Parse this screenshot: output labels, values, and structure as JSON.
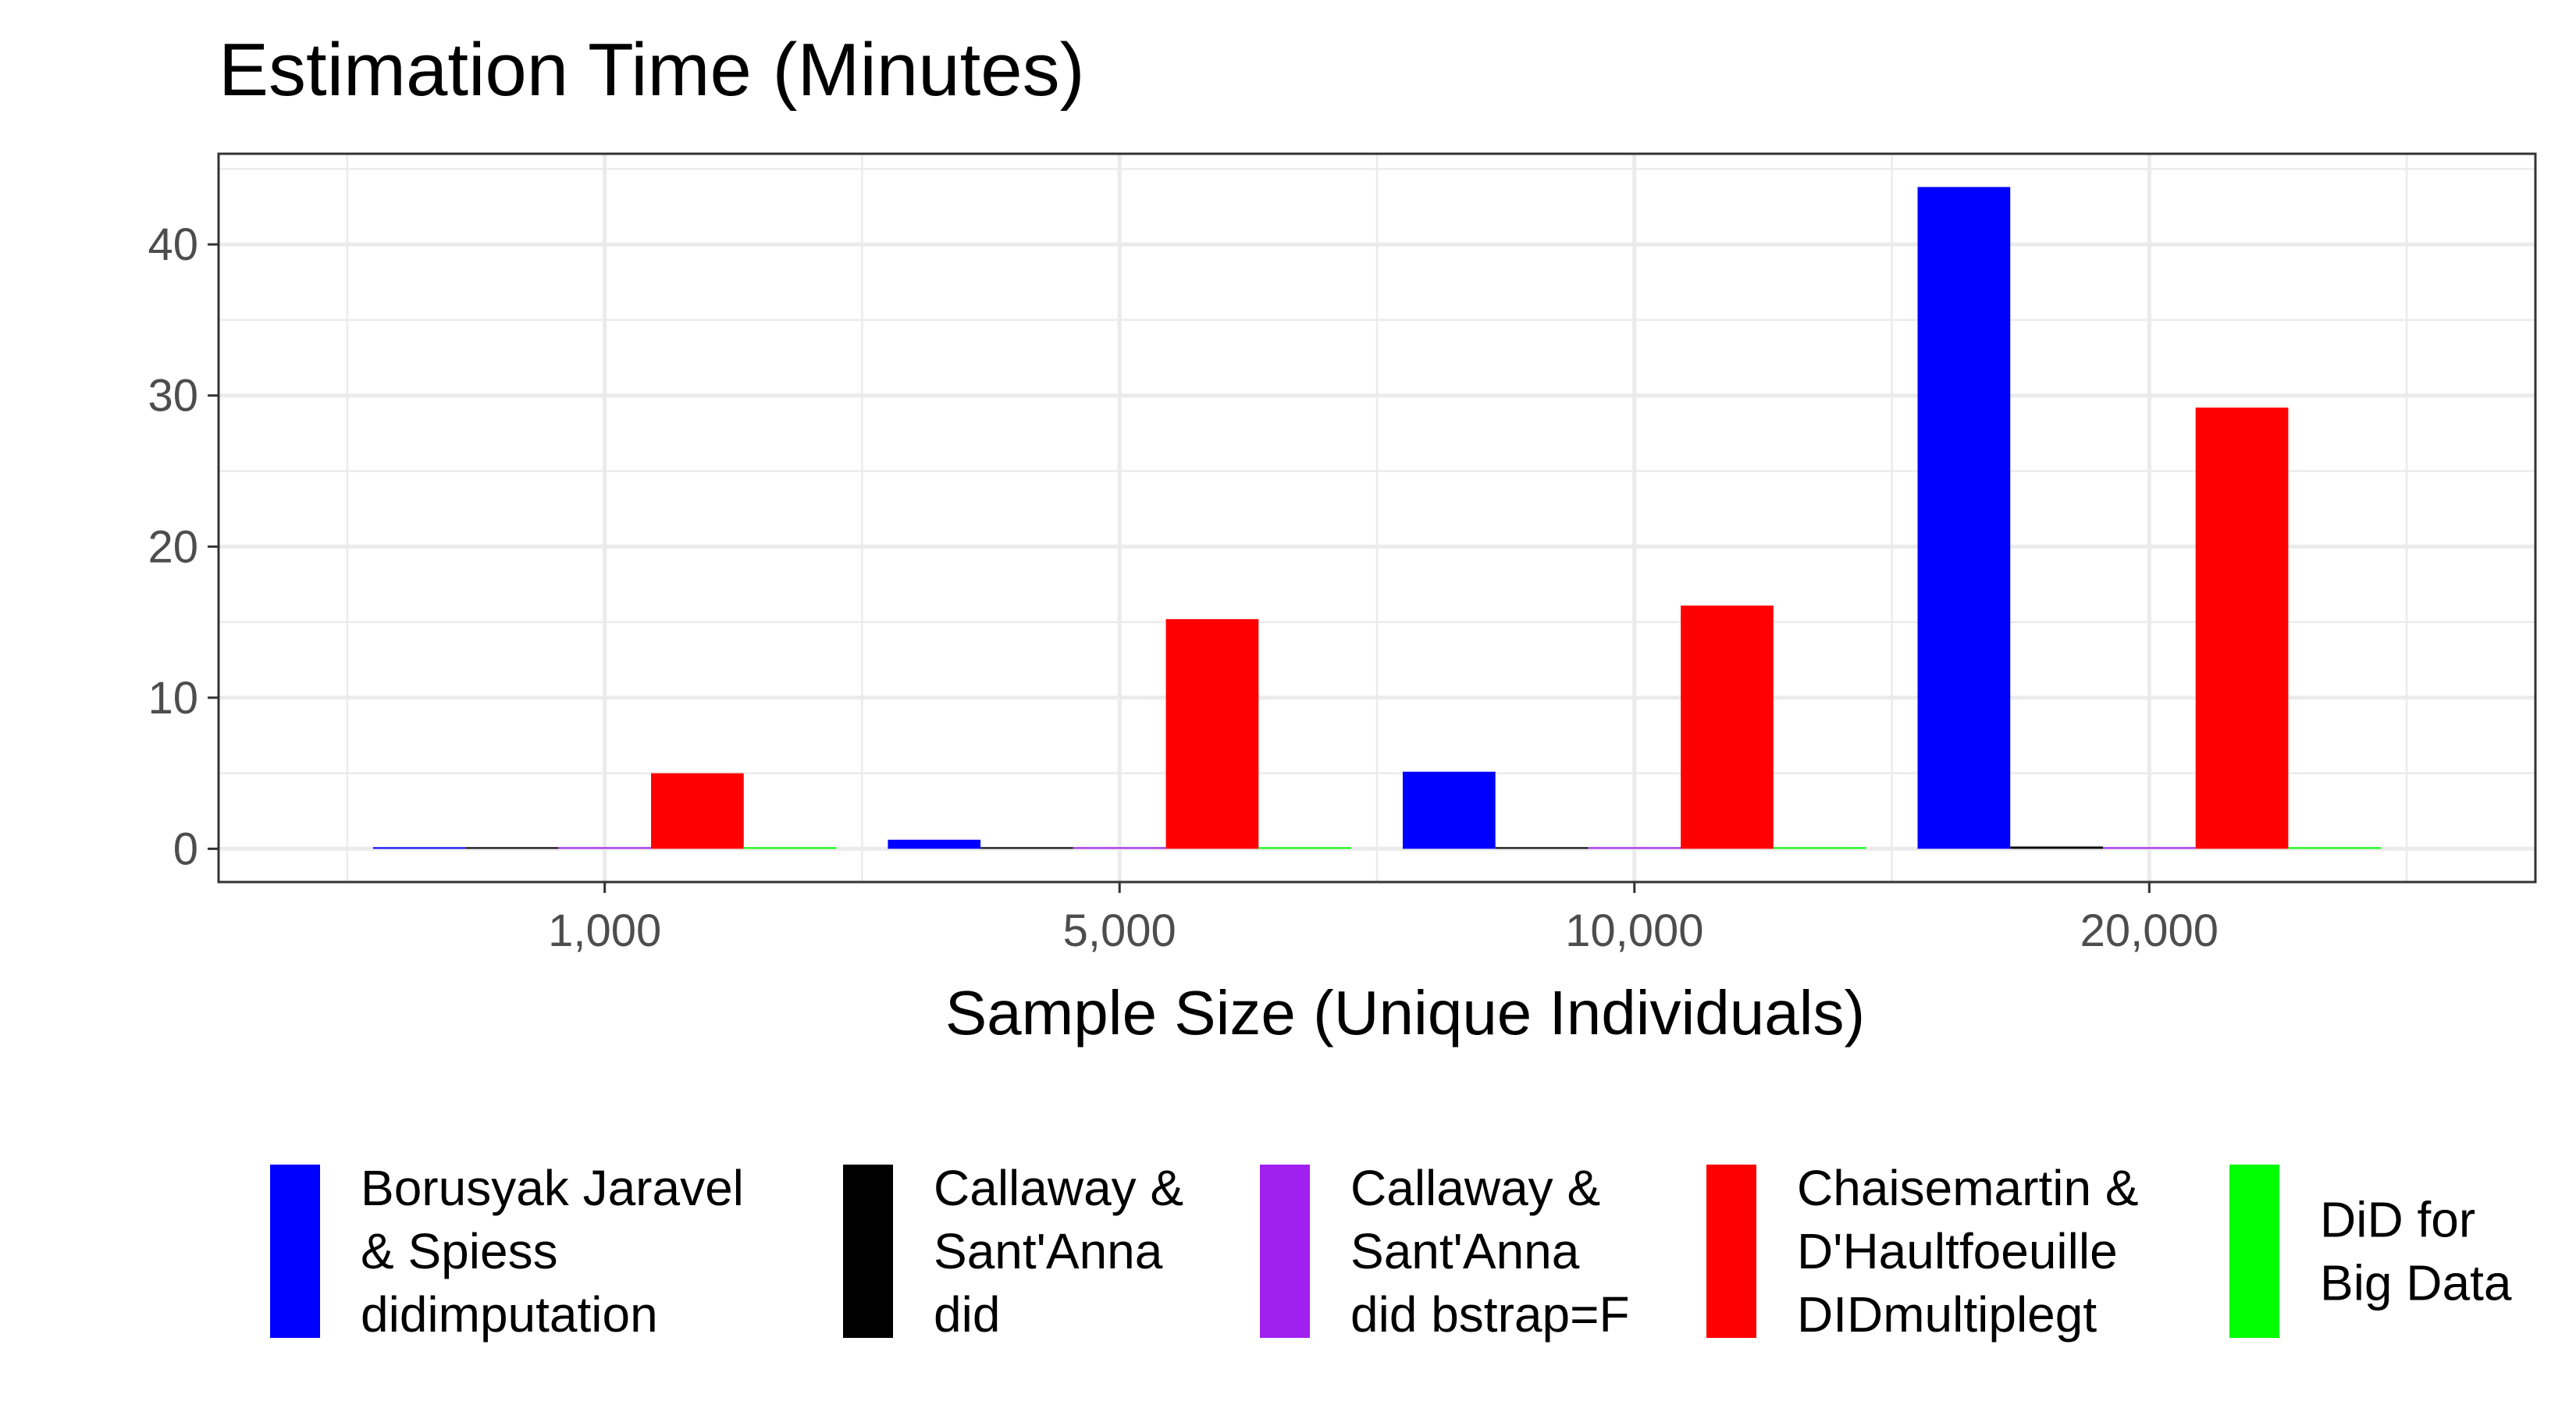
{
  "chart_data": {
    "type": "bar",
    "title": "Estimation Time (Minutes)",
    "xlabel": "Sample Size (Unique Individuals)",
    "ylabel": "",
    "categories": [
      "1,000",
      "5,000",
      "10,000",
      "20,000"
    ],
    "ylim": [
      -2.2,
      46
    ],
    "yticks": [
      0,
      10,
      20,
      30,
      40
    ],
    "grid": true,
    "legend_position": "bottom",
    "series": [
      {
        "name": "Borusyak Jaravel & Spiess didimputation",
        "legend_lines": [
          "Borusyak Jaravel",
          "& Spiess",
          "didimputation"
        ],
        "color": "#0000FF",
        "values": [
          0.05,
          0.6,
          5.1,
          43.8
        ]
      },
      {
        "name": "Callaway & Sant'Anna did",
        "legend_lines": [
          "Callaway &",
          "Sant'Anna",
          "did"
        ],
        "color": "#000000",
        "values": [
          0.05,
          0.1,
          0.1,
          0.15
        ]
      },
      {
        "name": "Callaway & Sant'Anna did bstrap=F",
        "legend_lines": [
          "Callaway &",
          "Sant'Anna",
          "did bstrap=F"
        ],
        "color": "#A020F0",
        "values": [
          0.05,
          0.05,
          0.1,
          0.1
        ]
      },
      {
        "name": "Chaisemartin & D'Haultfoeuille DIDmultiplegt",
        "legend_lines": [
          "Chaisemartin &",
          "D'Haultfoeuille",
          "DIDmultiplegt"
        ],
        "color": "#FF0000",
        "values": [
          5.0,
          15.2,
          16.1,
          29.2
        ]
      },
      {
        "name": "DiD for Big Data",
        "legend_lines": [
          "DiD for",
          "Big Data"
        ],
        "color": "#00FF00",
        "values": [
          0.05,
          0.05,
          0.05,
          0.05
        ]
      }
    ]
  }
}
